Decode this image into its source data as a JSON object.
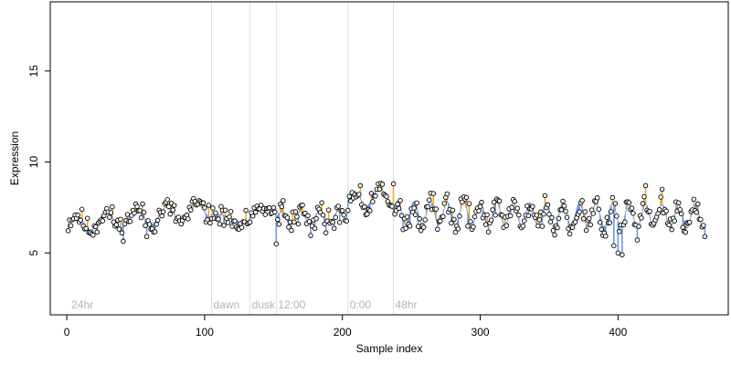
{
  "chart_data": {
    "type": "scatter",
    "title": "",
    "xlabel": "Sample index",
    "ylabel": "Expression",
    "xlim": [
      -12,
      480
    ],
    "ylim": [
      1.6,
      18.8
    ],
    "x_ticks": [
      0,
      100,
      200,
      300,
      400
    ],
    "y_ticks": [
      5,
      10,
      15
    ],
    "grid": false,
    "legend": "none",
    "colors": {
      "point_stroke": "#000000",
      "point_fill": "#ffffff",
      "below_mean": "#6f9be0",
      "above_mean": "#f5a623",
      "divider": "#dddddd",
      "region_text": "#b3b3b3"
    },
    "mean_line": {
      "color": "#6f9be0",
      "visible": true
    },
    "regions": [
      {
        "label": "24hr",
        "x": 2
      },
      {
        "label": "dawn",
        "x": 105
      },
      {
        "label": "dusk",
        "x": 133
      },
      {
        "label": "12:00",
        "x": 152
      },
      {
        "label": "0:00",
        "x": 204
      },
      {
        "label": "48hr",
        "x": 237
      }
    ],
    "dividers": [
      105,
      133,
      152,
      204,
      237
    ],
    "segments": [
      {
        "x0": 1,
        "x1": 104,
        "mean": [
          6.6,
          7.3
        ],
        "amp": 0.45,
        "noise": 0.5,
        "period": 22,
        "seed": 11
      },
      {
        "x0": 105,
        "x1": 132,
        "mean": [
          7.1,
          6.7
        ],
        "amp": 0.1,
        "noise": 0.55,
        "period": 30,
        "seed": 23
      },
      {
        "x0": 133,
        "x1": 151,
        "mean": [
          7.1,
          7.4
        ],
        "amp": 0.15,
        "noise": 0.3,
        "period": 30,
        "seed": 31
      },
      {
        "x0": 152,
        "x1": 203,
        "mean": [
          6.9,
          7.0
        ],
        "amp": 0.35,
        "noise": 0.55,
        "period": 14,
        "seed": 41
      },
      {
        "x0": 204,
        "x1": 236,
        "mean": [
          7.9,
          8.2
        ],
        "amp": 0.45,
        "noise": 0.45,
        "period": 18,
        "seed": 53
      },
      {
        "x0": 237,
        "x1": 463,
        "mean": [
          7.2,
          7.0
        ],
        "amp": 0.65,
        "noise": 0.55,
        "period": 12,
        "seed": 67
      }
    ],
    "extreme_points": [
      {
        "x": 152,
        "y": 5.5
      },
      {
        "x": 58,
        "y": 5.9
      },
      {
        "x": 400,
        "y": 5.0
      },
      {
        "x": 403,
        "y": 4.9
      },
      {
        "x": 397,
        "y": 5.4
      },
      {
        "x": 213,
        "y": 8.7
      },
      {
        "x": 237,
        "y": 8.8
      },
      {
        "x": 420,
        "y": 8.7
      },
      {
        "x": 432,
        "y": 8.5
      },
      {
        "x": 463,
        "y": 5.9
      }
    ]
  }
}
